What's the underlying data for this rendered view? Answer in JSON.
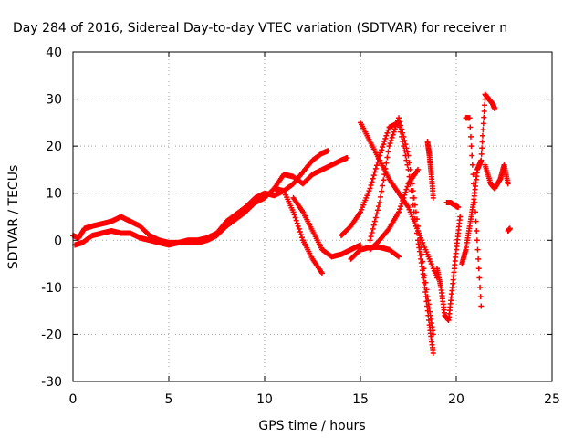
{
  "chart_data": {
    "type": "scatter",
    "title": "Day 284 of 2016, Sidereal Day-to-day VTEC variation (SDTVAR) for receiver n",
    "xlabel": "GPS time / hours",
    "ylabel": "SDTVAR / TECUs",
    "xlim": [
      0,
      25
    ],
    "ylim": [
      -30,
      40
    ],
    "xticks": [
      0,
      5,
      10,
      15,
      20,
      25
    ],
    "yticks": [
      -30,
      -20,
      -10,
      0,
      10,
      20,
      30,
      40
    ],
    "grid": true,
    "marker": "+",
    "marker_color": "#ff0000",
    "series": [
      {
        "x": [
          0.0,
          0.3,
          0.6,
          1.0,
          1.5,
          2.0,
          2.5,
          3.0,
          3.5,
          4.0,
          4.5,
          5.0,
          5.5,
          6.0,
          6.5,
          7.0,
          7.5,
          8.0,
          8.5,
          9.0,
          9.5,
          10.0,
          10.5,
          11.0,
          11.5,
          12.0,
          12.5,
          13.0,
          13.3
        ],
        "y": [
          1.0,
          0.5,
          2.5,
          3.0,
          3.5,
          4.0,
          5.0,
          4.0,
          3.0,
          1.0,
          0.0,
          -0.5,
          -0.5,
          0.0,
          0.0,
          0.5,
          1.5,
          4.0,
          5.5,
          7.0,
          9.0,
          10.0,
          9.5,
          10.5,
          12.0,
          14.5,
          17.0,
          18.5,
          19.0
        ]
      },
      {
        "x": [
          0.1,
          0.5,
          1.0,
          1.5,
          2.0,
          2.5,
          3.0,
          3.5,
          4.0,
          4.5,
          5.0,
          5.5,
          6.0,
          6.5,
          7.0,
          7.5,
          8.0,
          8.5,
          9.0,
          9.5,
          10.0,
          10.5,
          11.0,
          11.5,
          12.0,
          12.5,
          13.0
        ],
        "y": [
          -1.0,
          -0.5,
          1.0,
          1.5,
          2.0,
          1.5,
          1.5,
          0.5,
          0.0,
          -0.5,
          -1.0,
          -0.5,
          -0.5,
          -0.5,
          0.0,
          1.0,
          3.0,
          4.5,
          6.0,
          8.0,
          9.0,
          11.0,
          10.5,
          6.0,
          0.0,
          -4.0,
          -7.0
        ]
      },
      {
        "x": [
          11.5,
          12.0,
          12.5,
          13.0,
          13.5,
          14.0,
          14.5,
          15.0
        ],
        "y": [
          9.0,
          6.0,
          2.0,
          -2.0,
          -3.5,
          -3.0,
          -2.0,
          -1.0
        ]
      },
      {
        "x": [
          10.5,
          11.0,
          11.5,
          12.0,
          12.5,
          13.0,
          13.5,
          14.0,
          14.3
        ],
        "y": [
          11.0,
          14.0,
          13.5,
          12.0,
          14.0,
          15.0,
          16.0,
          17.0,
          17.5
        ]
      },
      {
        "x": [
          14.0,
          14.5,
          15.0,
          15.5,
          16.0,
          16.5,
          17.0,
          17.5,
          18.0,
          18.3,
          18.6,
          18.8
        ],
        "y": [
          1.0,
          3.0,
          6.0,
          11.0,
          18.0,
          24.0,
          25.0,
          15.0,
          0.0,
          -8.0,
          -18.0,
          -24.0
        ]
      },
      {
        "x": [
          15.5,
          16.0,
          16.5,
          17.0,
          17.5,
          18.0,
          18.5,
          18.8
        ],
        "y": [
          0.0,
          8.0,
          20.0,
          26.0,
          18.0,
          3.0,
          -12.0,
          -20.0
        ]
      },
      {
        "x": [
          15.0,
          15.5,
          16.0,
          16.5,
          17.0,
          17.5,
          18.0,
          18.5,
          19.0
        ],
        "y": [
          25.0,
          21.0,
          17.0,
          13.0,
          10.0,
          7.0,
          2.0,
          -3.0,
          -8.0
        ]
      },
      {
        "x": [
          14.5,
          15.0,
          15.5,
          16.0,
          16.5,
          17.0
        ],
        "y": [
          -4.0,
          -2.0,
          -1.5,
          -1.5,
          -2.0,
          -3.5
        ]
      },
      {
        "x": [
          15.5,
          16.0,
          16.5,
          17.0,
          17.5,
          18.0
        ],
        "y": [
          -2.0,
          0.0,
          2.5,
          6.0,
          12.0,
          15.0
        ]
      },
      {
        "x": [
          18.5,
          18.6,
          18.7,
          18.8
        ],
        "y": [
          21.0,
          18.0,
          14.0,
          9.0
        ]
      },
      {
        "x": [
          19.0,
          19.2,
          19.4,
          19.6,
          19.8,
          20.0,
          20.2
        ],
        "y": [
          -6.0,
          -10.0,
          -16.0,
          -17.0,
          -10.0,
          -2.0,
          5.0
        ]
      },
      {
        "x": [
          19.5,
          19.7,
          19.9,
          20.1
        ],
        "y": [
          8.0,
          8.0,
          7.5,
          7.0
        ]
      },
      {
        "x": [
          20.3,
          20.5,
          20.7,
          20.9,
          21.1,
          21.3,
          21.5
        ],
        "y": [
          -5.0,
          -2.0,
          3.0,
          8.0,
          15.0,
          17.0,
          30.0
        ]
      },
      {
        "x": [
          20.5,
          20.7,
          21.0,
          21.3
        ],
        "y": [
          26.0,
          26.0,
          6.0,
          -14.0
        ]
      },
      {
        "x": [
          21.5,
          21.7,
          21.9,
          22.0
        ],
        "y": [
          31.0,
          30.0,
          29.0,
          28.0
        ]
      },
      {
        "x": [
          21.5,
          21.8,
          22.0,
          22.3,
          22.5,
          22.7
        ],
        "y": [
          16.0,
          12.0,
          11.0,
          13.0,
          16.0,
          12.0
        ]
      },
      {
        "x": [
          22.7,
          22.8
        ],
        "y": [
          2.0,
          2.5
        ]
      }
    ]
  }
}
